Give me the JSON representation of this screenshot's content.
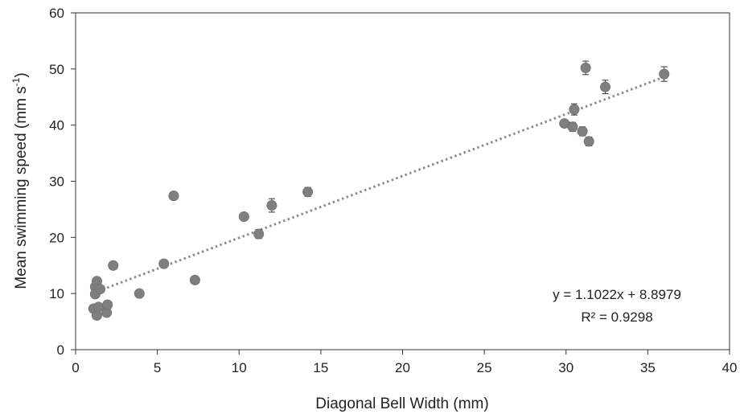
{
  "chart_data": {
    "type": "scatter",
    "xlabel": "Diagonal Bell Width (mm)",
    "ylabel": {
      "base": "Mean swimming speed (mm s",
      "sup": "-1",
      "end": ")"
    },
    "xlim": [
      0,
      40
    ],
    "ylim": [
      0,
      60
    ],
    "xticks": [
      "0",
      "5",
      "10",
      "15",
      "20",
      "25",
      "30",
      "35",
      "40"
    ],
    "yticks": [
      "0",
      "10",
      "20",
      "30",
      "40",
      "50",
      "60"
    ],
    "grid": false,
    "marker_color": "#7f7f7f",
    "trendline_color": "#8c8c8c",
    "series": [
      {
        "points": [
          {
            "x": 1.1,
            "y": 7.3,
            "err": 0.5
          },
          {
            "x": 1.2,
            "y": 11.2,
            "err": 0.5
          },
          {
            "x": 1.2,
            "y": 9.9,
            "err": 0.5
          },
          {
            "x": 1.3,
            "y": 12.2,
            "err": 0.5
          },
          {
            "x": 1.3,
            "y": 6.1,
            "err": 0.5
          },
          {
            "x": 1.4,
            "y": 7.6,
            "err": 0.5
          },
          {
            "x": 1.5,
            "y": 10.8,
            "err": 0.5
          },
          {
            "x": 1.9,
            "y": 6.6,
            "err": 0.5
          },
          {
            "x": 1.95,
            "y": 8.0,
            "err": 0.5
          },
          {
            "x": 2.3,
            "y": 15.0,
            "err": 0.6
          },
          {
            "x": 3.9,
            "y": 10.0,
            "err": 0.5
          },
          {
            "x": 5.4,
            "y": 15.3,
            "err": 0.5
          },
          {
            "x": 6.0,
            "y": 27.4,
            "err": 0.5
          },
          {
            "x": 7.3,
            "y": 12.4,
            "err": 0.5
          },
          {
            "x": 10.3,
            "y": 23.7,
            "err": 0.5
          },
          {
            "x": 11.2,
            "y": 20.6,
            "err": 0.8
          },
          {
            "x": 12.0,
            "y": 25.7,
            "err": 1.2
          },
          {
            "x": 14.2,
            "y": 28.1,
            "err": 0.8
          },
          {
            "x": 29.9,
            "y": 40.3,
            "err": 0.5
          },
          {
            "x": 30.4,
            "y": 39.7,
            "err": 0.8
          },
          {
            "x": 30.5,
            "y": 42.8,
            "err": 1.0
          },
          {
            "x": 31.0,
            "y": 38.9,
            "err": 0.8
          },
          {
            "x": 31.2,
            "y": 50.2,
            "err": 1.2
          },
          {
            "x": 31.4,
            "y": 37.1,
            "err": 0.8
          },
          {
            "x": 32.4,
            "y": 46.8,
            "err": 1.2
          },
          {
            "x": 36.0,
            "y": 49.1,
            "err": 1.3
          }
        ]
      }
    ],
    "trendline": {
      "slope": 1.1022,
      "intercept": 8.8979,
      "x_range": [
        1.1,
        36.0
      ]
    },
    "annotations": [
      "y = 1.1022x + 8.8979",
      "R² = 0.9298"
    ]
  }
}
